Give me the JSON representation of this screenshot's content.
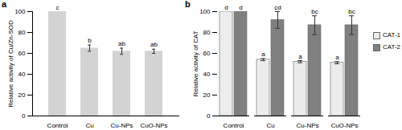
{
  "chart_data": [
    {
      "type": "bar",
      "title": "a",
      "categories": [
        "Control",
        "Cu",
        "Cu-NPs",
        "CuO-NPs"
      ],
      "values": [
        100,
        65,
        62,
        62
      ],
      "errors": [
        0,
        3,
        3,
        2
      ],
      "letters": [
        "c",
        "b",
        "ab",
        "ab"
      ],
      "color": "#d3d3d3",
      "ylabel": "Relative activity of Cu/Zn-SOD",
      "ylim": [
        0,
        100
      ],
      "yticks": [
        0,
        20,
        40,
        60,
        80,
        100
      ]
    },
    {
      "type": "bar",
      "title": "b",
      "categories": [
        "Control",
        "Cu",
        "Cu-NPs",
        "CuO-NPs"
      ],
      "series": [
        {
          "name": "CAT-1",
          "color": "#ececec",
          "values": [
            100,
            54,
            52,
            51
          ],
          "errors": [
            0,
            1,
            1,
            1
          ],
          "letters": [
            "d",
            "a",
            "a",
            "a"
          ]
        },
        {
          "name": "CAT-2",
          "color": "#808080",
          "values": [
            100,
            92,
            87,
            87
          ],
          "errors": [
            0,
            8,
            9,
            9
          ],
          "letters": [
            "d",
            "cd",
            "bc",
            "bc"
          ]
        }
      ],
      "legend": "right",
      "ylabel": "Relative activity of CAT",
      "ylim": [
        0,
        100
      ],
      "yticks": [
        0,
        20,
        40,
        60,
        80,
        100
      ]
    }
  ]
}
